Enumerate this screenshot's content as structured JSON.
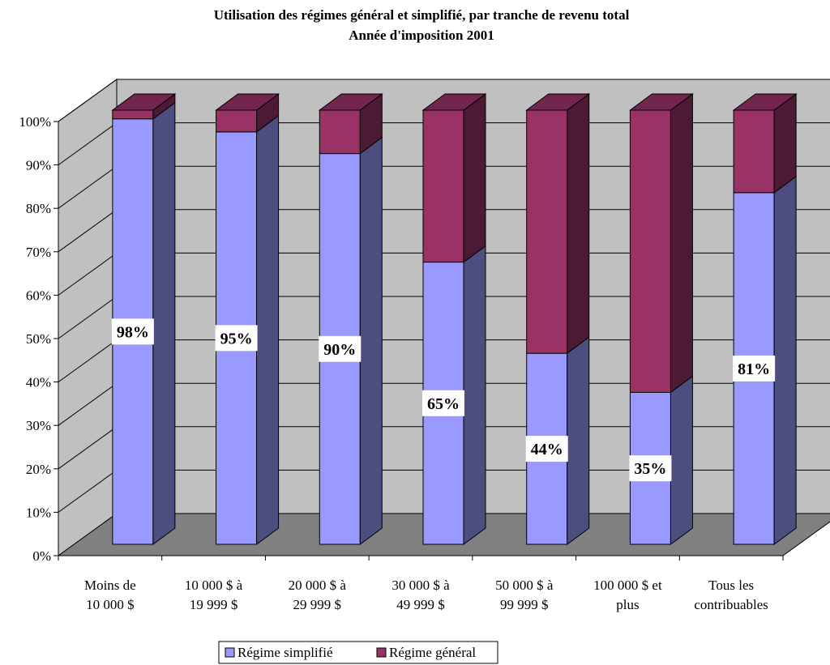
{
  "chart_data": {
    "type": "bar",
    "stacked": true,
    "title": "Utilisation des régimes général et simplifié, par tranche de revenu total",
    "subtitle": "Année d'imposition 2001",
    "categories": [
      [
        "Moins de",
        "10 000 $"
      ],
      [
        "10 000 $ à",
        "19 999 $"
      ],
      [
        "20 000 $ à",
        "29 999 $"
      ],
      [
        "30 000 $ à",
        "49 999 $"
      ],
      [
        "50 000 $ à",
        "99 999 $"
      ],
      [
        "100 000 $ et",
        "plus"
      ],
      [
        "Tous les",
        "contribuables"
      ]
    ],
    "series": [
      {
        "name": "Régime simplifié",
        "values": [
          98,
          95,
          90,
          65,
          44,
          35,
          81
        ],
        "color": "#9999ff"
      },
      {
        "name": "Régime général",
        "values": [
          2,
          5,
          10,
          35,
          56,
          65,
          19
        ],
        "color": "#993366"
      }
    ],
    "data_labels": [
      "98%",
      "95%",
      "90%",
      "65%",
      "44%",
      "35%",
      "81%"
    ],
    "y_ticks": [
      "0%",
      "10%",
      "20%",
      "30%",
      "40%",
      "50%",
      "60%",
      "70%",
      "80%",
      "90%",
      "100%"
    ],
    "ylim": [
      0,
      100
    ],
    "grid": true,
    "legend_position": "bottom",
    "wall_color": "#c0c0c0",
    "floor_color": "#808080"
  }
}
